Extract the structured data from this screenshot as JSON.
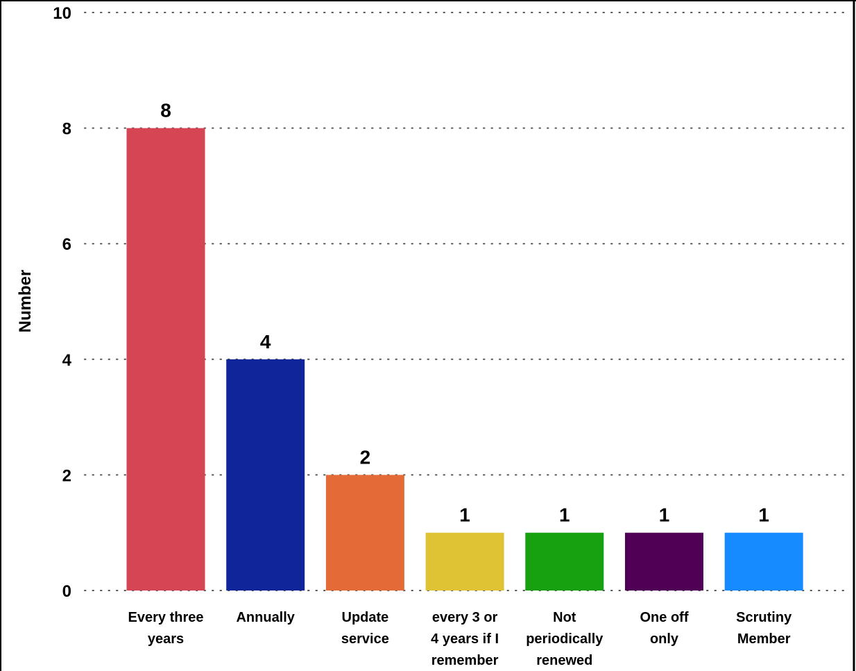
{
  "chart_data": {
    "type": "bar",
    "title": "",
    "xlabel": "",
    "ylabel": "Number",
    "ylim": [
      0,
      10
    ],
    "yticks": [
      0,
      2,
      4,
      6,
      8,
      10
    ],
    "grid": true,
    "legend": "none",
    "categories": [
      "Every three years",
      "Annually",
      "Update service",
      "every 3 or 4 years if I remember",
      "Not periodically renewed",
      "One off only",
      "Scrutiny Member"
    ],
    "category_label_lines": [
      [
        "Every three",
        "years"
      ],
      [
        "Annually"
      ],
      [
        "Update",
        "service"
      ],
      [
        "every 3 or",
        "4 years if I",
        "remember"
      ],
      [
        "Not",
        "periodically",
        "renewed"
      ],
      [
        "One off",
        "only"
      ],
      [
        "Scrutiny",
        "Member"
      ]
    ],
    "values": [
      8,
      4,
      2,
      1,
      1,
      1,
      1
    ],
    "data_labels": [
      "8",
      "4",
      "2",
      "1",
      "1",
      "1",
      "1"
    ],
    "colors": [
      "#d64553",
      "#11259a",
      "#e46b37",
      "#e0c235",
      "#17a111",
      "#500055",
      "#158bff"
    ]
  }
}
